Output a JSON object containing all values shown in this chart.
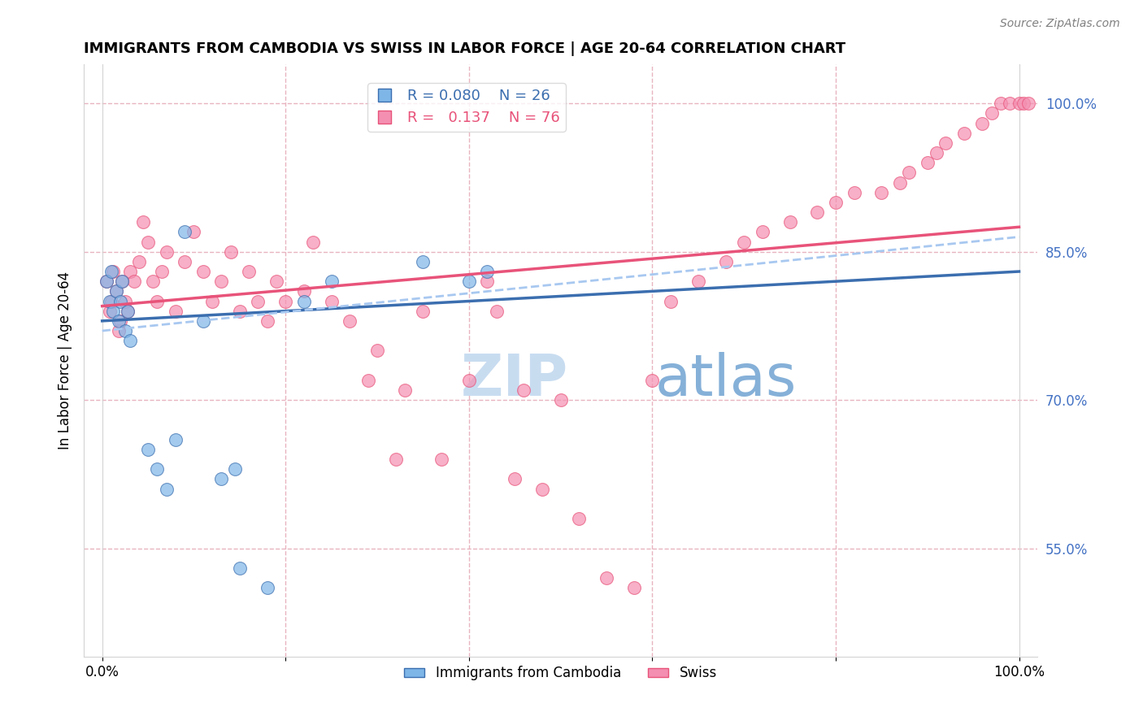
{
  "title": "IMMIGRANTS FROM CAMBODIA VS SWISS IN LABOR FORCE | AGE 20-64 CORRELATION CHART",
  "source_text": "Source: ZipAtlas.com",
  "ylabel": "In Labor Force | Age 20-64",
  "ylabel_right_ticks": [
    55.0,
    70.0,
    85.0,
    100.0
  ],
  "xlim": [
    -2,
    102
  ],
  "ylim": [
    44,
    104
  ],
  "legend_blue_R": "0.080",
  "legend_blue_N": "26",
  "legend_pink_R": "0.137",
  "legend_pink_N": "76",
  "blue_color": "#7EB6E8",
  "pink_color": "#F48FB1",
  "trend_blue_color": "#3B6EAF",
  "trend_pink_color": "#E8537A",
  "trend_dash_color": "#A8C8F0",
  "watermark_zip_color": "#C8DCF0",
  "watermark_atlas_color": "#85B0D8",
  "right_axis_color": "#4472C4",
  "grid_color": "#E8B4C0",
  "background_color": "#FFFFFF",
  "blue_scatter_x": [
    0.5,
    0.8,
    1.0,
    1.2,
    1.5,
    1.8,
    2.0,
    2.2,
    2.5,
    2.8,
    3.0,
    5.0,
    6.0,
    7.0,
    8.0,
    9.0,
    11.0,
    13.0,
    14.5,
    15.0,
    18.0,
    22.0,
    25.0,
    35.0,
    40.0,
    42.0
  ],
  "blue_scatter_y": [
    82.0,
    80.0,
    83.0,
    79.0,
    81.0,
    78.0,
    80.0,
    82.0,
    77.0,
    79.0,
    76.0,
    65.0,
    63.0,
    61.0,
    66.0,
    87.0,
    78.0,
    62.0,
    63.0,
    53.0,
    51.0,
    80.0,
    82.0,
    84.0,
    82.0,
    83.0
  ],
  "pink_scatter_x": [
    0.5,
    0.8,
    1.0,
    1.2,
    1.5,
    1.8,
    2.0,
    2.2,
    2.5,
    2.8,
    3.0,
    3.5,
    4.0,
    4.5,
    5.0,
    5.5,
    6.0,
    6.5,
    7.0,
    8.0,
    9.0,
    10.0,
    11.0,
    12.0,
    13.0,
    14.0,
    15.0,
    16.0,
    17.0,
    18.0,
    19.0,
    20.0,
    22.0,
    23.0,
    25.0,
    27.0,
    29.0,
    30.0,
    32.0,
    33.0,
    35.0,
    37.0,
    40.0,
    42.0,
    43.0,
    45.0,
    46.0,
    48.0,
    50.0,
    52.0,
    55.0,
    58.0,
    60.0,
    62.0,
    65.0,
    68.0,
    70.0,
    72.0,
    75.0,
    78.0,
    80.0,
    82.0,
    85.0,
    87.0,
    88.0,
    90.0,
    91.0,
    92.0,
    94.0,
    96.0,
    97.0,
    98.0,
    99.0,
    100.0,
    100.5,
    101.0
  ],
  "pink_scatter_y": [
    82.0,
    79.0,
    80.0,
    83.0,
    81.0,
    77.0,
    78.0,
    82.0,
    80.0,
    79.0,
    83.0,
    82.0,
    84.0,
    88.0,
    86.0,
    82.0,
    80.0,
    83.0,
    85.0,
    79.0,
    84.0,
    87.0,
    83.0,
    80.0,
    82.0,
    85.0,
    79.0,
    83.0,
    80.0,
    78.0,
    82.0,
    80.0,
    81.0,
    86.0,
    80.0,
    78.0,
    72.0,
    75.0,
    64.0,
    71.0,
    79.0,
    64.0,
    72.0,
    82.0,
    79.0,
    62.0,
    71.0,
    61.0,
    70.0,
    58.0,
    52.0,
    51.0,
    72.0,
    80.0,
    82.0,
    84.0,
    86.0,
    87.0,
    88.0,
    89.0,
    90.0,
    91.0,
    91.0,
    92.0,
    93.0,
    94.0,
    95.0,
    96.0,
    97.0,
    98.0,
    99.0,
    100.0,
    100.0,
    100.0,
    100.0,
    100.0
  ],
  "blue_trend_y_start": 78.0,
  "blue_trend_y_end": 83.0,
  "pink_trend_y_start": 79.5,
  "pink_trend_y_end": 87.5,
  "dash_trend_y_start": 77.0,
  "dash_trend_y_end": 86.5
}
